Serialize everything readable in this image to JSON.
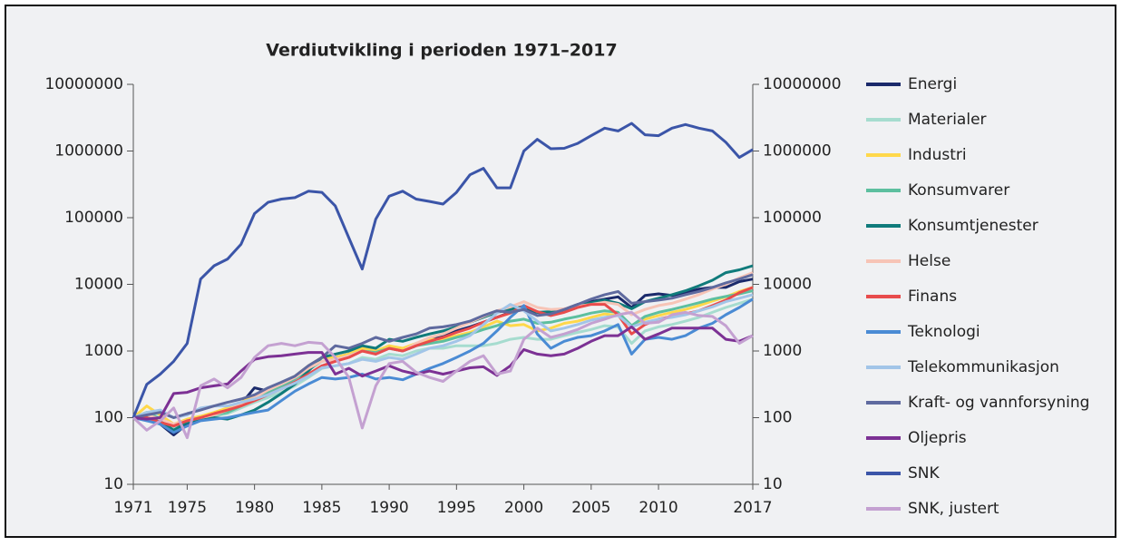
{
  "chart_data": {
    "type": "line",
    "title": "Verdiutvikling i perioden 1971–2017",
    "yscale": "log",
    "legend_position": "right",
    "x": [
      1971,
      1972,
      1973,
      1974,
      1975,
      1976,
      1977,
      1978,
      1979,
      1980,
      1981,
      1982,
      1983,
      1984,
      1985,
      1986,
      1987,
      1988,
      1989,
      1990,
      1991,
      1992,
      1993,
      1994,
      1995,
      1996,
      1997,
      1998,
      1999,
      2000,
      2001,
      2002,
      2003,
      2004,
      2005,
      2006,
      2007,
      2008,
      2009,
      2010,
      2011,
      2012,
      2013,
      2014,
      2015,
      2016,
      2017
    ],
    "xlim": [
      1971,
      2017
    ],
    "xticks": [
      1971,
      1975,
      1980,
      1985,
      1990,
      1995,
      2000,
      2005,
      2010,
      2017
    ],
    "ylim": [
      10,
      10000000
    ],
    "yticks": [
      10,
      100,
      1000,
      10000,
      100000,
      1000000,
      10000000
    ],
    "y2lim": [
      10,
      10000000
    ],
    "y2ticks": [
      10,
      100,
      1000,
      10000,
      100000,
      1000000,
      10000000
    ],
    "series": [
      {
        "name": "Energi",
        "color": "#1b2a6b",
        "values": [
          100,
          110,
          80,
          55,
          80,
          95,
          110,
          130,
          160,
          280,
          250,
          300,
          400,
          550,
          800,
          800,
          900,
          1100,
          900,
          1100,
          1000,
          1200,
          1500,
          1700,
          2000,
          2300,
          2700,
          3200,
          3800,
          4200,
          3800,
          3500,
          4200,
          5000,
          5500,
          6000,
          6500,
          4500,
          6800,
          7200,
          6800,
          7500,
          8500,
          9000,
          9000,
          11000,
          12000
        ]
      },
      {
        "name": "Materialer",
        "color": "#a6dccf",
        "values": [
          100,
          120,
          100,
          70,
          85,
          100,
          105,
          115,
          140,
          170,
          200,
          240,
          300,
          400,
          550,
          600,
          650,
          800,
          750,
          900,
          850,
          1000,
          1100,
          1100,
          1200,
          1200,
          1200,
          1300,
          1500,
          1600,
          1500,
          1500,
          1700,
          1900,
          2100,
          2400,
          2300,
          1300,
          2000,
          2300,
          2500,
          2800,
          3200,
          3800,
          4500,
          5200,
          6000
        ]
      },
      {
        "name": "Industri",
        "color": "#ffd84a",
        "values": [
          100,
          150,
          110,
          80,
          95,
          105,
          120,
          140,
          170,
          210,
          270,
          330,
          420,
          600,
          800,
          800,
          900,
          1100,
          1000,
          1200,
          1100,
          1300,
          1500,
          1500,
          1700,
          1900,
          2300,
          2800,
          2400,
          2500,
          2000,
          2200,
          2600,
          2800,
          3200,
          3600,
          3400,
          2300,
          3000,
          3400,
          3800,
          4200,
          4800,
          5600,
          6500,
          7800,
          9000
        ]
      },
      {
        "name": "Konsumvarer",
        "color": "#5dbf9f",
        "values": [
          100,
          120,
          95,
          75,
          90,
          100,
          110,
          120,
          150,
          190,
          240,
          290,
          380,
          520,
          700,
          750,
          850,
          1000,
          950,
          1100,
          1000,
          1200,
          1300,
          1400,
          1600,
          1800,
          2100,
          2400,
          2800,
          3000,
          2600,
          2700,
          3000,
          3300,
          3700,
          4000,
          3800,
          2400,
          3300,
          3800,
          4200,
          4700,
          5300,
          6000,
          6600,
          7200,
          8000
        ]
      },
      {
        "name": "Konsumtjenester",
        "color": "#107b7b",
        "values": [
          100,
          105,
          90,
          65,
          85,
          95,
          100,
          95,
          110,
          130,
          170,
          230,
          320,
          500,
          800,
          900,
          1000,
          1200,
          1100,
          1500,
          1400,
          1600,
          1800,
          2000,
          2300,
          2700,
          3200,
          3800,
          4200,
          4700,
          3800,
          3900,
          4200,
          4700,
          5300,
          5800,
          5200,
          4300,
          5500,
          6200,
          7000,
          8000,
          9500,
          11500,
          15000,
          16500,
          19000
        ]
      },
      {
        "name": "Helse",
        "color": "#f7c4b6",
        "values": [
          100,
          110,
          95,
          80,
          90,
          100,
          110,
          130,
          160,
          200,
          260,
          320,
          400,
          550,
          700,
          750,
          850,
          1000,
          900,
          1100,
          1000,
          1300,
          1600,
          1800,
          2200,
          2700,
          3300,
          4000,
          4600,
          5500,
          4500,
          4200,
          4300,
          4700,
          5000,
          5400,
          5000,
          3500,
          4200,
          4800,
          5200,
          6000,
          7000,
          8500,
          10000,
          12500,
          15000
        ]
      },
      {
        "name": "Finans",
        "color": "#e84c4c",
        "values": [
          100,
          100,
          85,
          75,
          90,
          100,
          115,
          130,
          150,
          180,
          220,
          270,
          340,
          450,
          600,
          700,
          800,
          1000,
          900,
          1100,
          1000,
          1200,
          1400,
          1600,
          1900,
          2200,
          2700,
          3200,
          3700,
          4800,
          3900,
          3400,
          3800,
          4500,
          5000,
          5000,
          3500,
          1800,
          2500,
          3000,
          3300,
          3600,
          4000,
          4800,
          5800,
          7500,
          9000
        ]
      },
      {
        "name": "Teknologi",
        "color": "#4a8bd4",
        "values": [
          100,
          90,
          80,
          60,
          75,
          90,
          95,
          100,
          110,
          120,
          130,
          180,
          250,
          320,
          400,
          380,
          400,
          450,
          380,
          400,
          370,
          450,
          550,
          650,
          800,
          1000,
          1300,
          2000,
          3200,
          4800,
          1800,
          1100,
          1400,
          1600,
          1700,
          2000,
          2500,
          900,
          1500,
          1600,
          1500,
          1700,
          2200,
          2600,
          3500,
          4500,
          6000
        ]
      },
      {
        "name": "Telekommunikasjon",
        "color": "#a2c5e8",
        "values": [
          100,
          120,
          130,
          100,
          110,
          140,
          150,
          150,
          170,
          190,
          220,
          270,
          330,
          420,
          560,
          600,
          650,
          750,
          700,
          800,
          750,
          900,
          1100,
          1200,
          1400,
          1700,
          2500,
          3700,
          5000,
          4000,
          2800,
          2000,
          2200,
          2500,
          2900,
          3200,
          3400,
          2300,
          2700,
          3000,
          3200,
          3500,
          4000,
          4600,
          5500,
          6200,
          7000
        ]
      },
      {
        "name": "Kraft- og vannforsyning",
        "color": "#5f6a9f",
        "values": [
          100,
          110,
          120,
          100,
          115,
          130,
          150,
          170,
          190,
          220,
          280,
          340,
          420,
          600,
          800,
          1200,
          1100,
          1300,
          1600,
          1400,
          1600,
          1800,
          2200,
          2300,
          2500,
          2800,
          3400,
          4000,
          3800,
          4200,
          3400,
          3600,
          4200,
          5000,
          6000,
          7000,
          7800,
          5200,
          5500,
          5800,
          6200,
          7000,
          7800,
          9000,
          10500,
          12000,
          14000
        ]
      },
      {
        "name": "Oljepris",
        "color": "#7c3194",
        "values": [
          100,
          95,
          100,
          230,
          240,
          280,
          300,
          320,
          500,
          750,
          820,
          850,
          900,
          950,
          950,
          450,
          550,
          420,
          500,
          600,
          500,
          450,
          500,
          450,
          500,
          560,
          580,
          430,
          600,
          1050,
          900,
          850,
          900,
          1100,
          1400,
          1700,
          1700,
          2300,
          1500,
          1800,
          2200,
          2200,
          2200,
          2200,
          1500,
          1400,
          1700
        ]
      },
      {
        "name": "SNK",
        "color": "#3b55a8",
        "values": [
          100,
          316,
          450,
          700,
          1300,
          12000,
          19000,
          24000,
          40000,
          115000,
          170000,
          190000,
          200000,
          250000,
          240000,
          150000,
          50000,
          17000,
          95000,
          210000,
          250000,
          190000,
          175000,
          160000,
          240000,
          440000,
          550000,
          280000,
          280000,
          1000000,
          1500000,
          1080000,
          1100000,
          1300000,
          1700000,
          2200000,
          2000000,
          2600000,
          1750000,
          1700000,
          2200000,
          2500000,
          2200000,
          2000000,
          1350000,
          800000,
          1050000
        ]
      },
      {
        "name": "SNK, justert",
        "color": "#c4a1d1",
        "values": [
          100,
          65,
          90,
          140,
          50,
          300,
          380,
          280,
          400,
          800,
          1200,
          1300,
          1200,
          1350,
          1300,
          800,
          400,
          70,
          300,
          650,
          700,
          480,
          400,
          350,
          500,
          700,
          850,
          450,
          500,
          1500,
          2200,
          1600,
          1800,
          2100,
          2600,
          3000,
          3500,
          3800,
          2600,
          2700,
          3500,
          3800,
          3400,
          3300,
          2400,
          1300,
          1700
        ]
      }
    ]
  }
}
